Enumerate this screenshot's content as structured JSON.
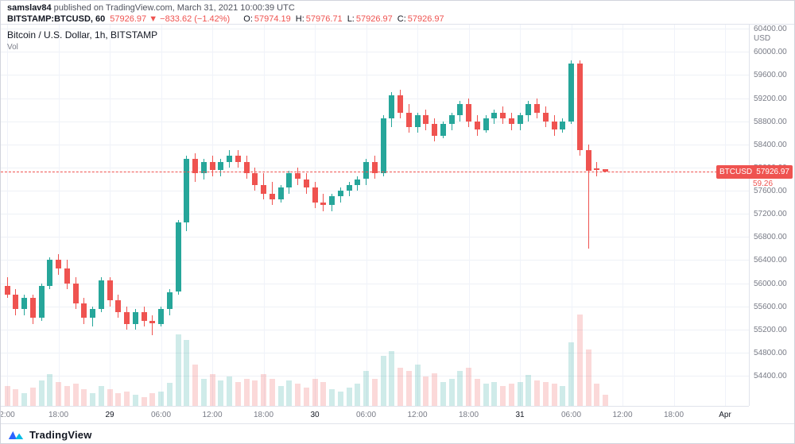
{
  "header": {
    "author": "samslav84",
    "published_text": "published on TradingView.com, March 31, 2021 10:00:39 UTC",
    "symbol": "BITSTAMP:BTCUSD, 60",
    "last_price": "57926.97",
    "change": "▼ −833.62 (−1.42%)",
    "ohlc": {
      "o_label": "O:",
      "o_value": "57974.19",
      "h_label": "H:",
      "h_value": "57976.71",
      "l_label": "L:",
      "l_value": "57926.97",
      "c_label": "C:",
      "c_value": "57926.97"
    }
  },
  "chart": {
    "legend_title": "Bitcoin / U.S. Dollar, 1h, BITSTAMP",
    "volume_label": "Vol",
    "axis_unit": "USD",
    "price_badge": {
      "symbol": "BTCUSD",
      "price": "57926.97",
      "sub_value": "59.26"
    },
    "colors": {
      "up": "#26a69a",
      "down": "#ef5350",
      "price_line": "#ef5350",
      "grid": "#eef1f6",
      "axis_text": "#787b86"
    }
  },
  "chart_data": {
    "type": "candlestick",
    "title": "Bitcoin / U.S. Dollar, 1h, BITSTAMP",
    "ylim": [
      53880,
      60470
    ],
    "y_grid_step": 400,
    "price_tick_labels": [
      "60400.00",
      "60000.00",
      "59600.00",
      "59200.00",
      "58800.00",
      "58400.00",
      "58000.00",
      "57600.00",
      "57200.00",
      "56800.00",
      "56400.00",
      "56000.00",
      "55600.00",
      "55200.00",
      "54800.00",
      "54400.00"
    ],
    "time_tick_labels": [
      {
        "label": "2:00",
        "ci": 0,
        "major": false
      },
      {
        "label": "18:00",
        "ci": 6,
        "major": false
      },
      {
        "label": "29",
        "ci": 12,
        "major": true
      },
      {
        "label": "06:00",
        "ci": 18,
        "major": false
      },
      {
        "label": "12:00",
        "ci": 24,
        "major": false
      },
      {
        "label": "18:00",
        "ci": 30,
        "major": false
      },
      {
        "label": "30",
        "ci": 36,
        "major": true
      },
      {
        "label": "06:00",
        "ci": 42,
        "major": false
      },
      {
        "label": "12:00",
        "ci": 48,
        "major": false
      },
      {
        "label": "18:00",
        "ci": 54,
        "major": false
      },
      {
        "label": "31",
        "ci": 60,
        "major": true
      },
      {
        "label": "06:00",
        "ci": 66,
        "major": false
      },
      {
        "label": "12:00",
        "ci": 72,
        "major": false
      },
      {
        "label": "18:00",
        "ci": 78,
        "major": false
      },
      {
        "label": "Apr",
        "ci": 84,
        "major": true
      }
    ],
    "last_price": 57926.97,
    "last_candle_ohlc": {
      "o": 57974.19,
      "h": 57976.71,
      "l": 57926.97,
      "c": 57926.97
    },
    "candles": [
      [
        55950,
        56100,
        55750,
        55800
      ],
      [
        55800,
        55900,
        55450,
        55550
      ],
      [
        55550,
        55800,
        55450,
        55750
      ],
      [
        55750,
        55800,
        55300,
        55400
      ],
      [
        55400,
        56000,
        55350,
        55950
      ],
      [
        55950,
        56450,
        55900,
        56400
      ],
      [
        56400,
        56500,
        56150,
        56250
      ],
      [
        56250,
        56400,
        55900,
        56000
      ],
      [
        56000,
        56100,
        55550,
        55650
      ],
      [
        55650,
        55750,
        55300,
        55400
      ],
      [
        55400,
        55600,
        55250,
        55550
      ],
      [
        55550,
        56100,
        55500,
        56050
      ],
      [
        56050,
        56100,
        55600,
        55700
      ],
      [
        55700,
        55800,
        55400,
        55500
      ],
      [
        55500,
        55600,
        55200,
        55300
      ],
      [
        55300,
        55550,
        55200,
        55500
      ],
      [
        55500,
        55600,
        55250,
        55350
      ],
      [
        55350,
        55450,
        55100,
        55300
      ],
      [
        55300,
        55600,
        55250,
        55550
      ],
      [
        55550,
        55900,
        55450,
        55850
      ],
      [
        55850,
        57100,
        55800,
        57050
      ],
      [
        57050,
        58200,
        56900,
        58150
      ],
      [
        58150,
        58250,
        57750,
        57900
      ],
      [
        57900,
        58150,
        57800,
        58100
      ],
      [
        58100,
        58200,
        57850,
        57950
      ],
      [
        57950,
        58150,
        57850,
        58100
      ],
      [
        58100,
        58300,
        58000,
        58200
      ],
      [
        58200,
        58300,
        58000,
        58100
      ],
      [
        58100,
        58200,
        57800,
        57900
      ],
      [
        57900,
        58000,
        57600,
        57700
      ],
      [
        57700,
        57900,
        57450,
        57550
      ],
      [
        57550,
        57750,
        57350,
        57450
      ],
      [
        57450,
        57700,
        57400,
        57650
      ],
      [
        57650,
        57950,
        57550,
        57900
      ],
      [
        57900,
        58000,
        57700,
        57800
      ],
      [
        57800,
        57900,
        57550,
        57650
      ],
      [
        57650,
        57750,
        57300,
        57400
      ],
      [
        57400,
        57550,
        57250,
        57350
      ],
      [
        57350,
        57550,
        57250,
        57500
      ],
      [
        57500,
        57650,
        57400,
        57600
      ],
      [
        57600,
        57750,
        57500,
        57700
      ],
      [
        57700,
        57850,
        57600,
        57800
      ],
      [
        57800,
        58150,
        57700,
        58100
      ],
      [
        58100,
        58200,
        57800,
        57900
      ],
      [
        57900,
        58900,
        57850,
        58850
      ],
      [
        58850,
        59300,
        58700,
        59250
      ],
      [
        59250,
        59350,
        58850,
        58950
      ],
      [
        58950,
        59100,
        58600,
        58700
      ],
      [
        58700,
        58950,
        58600,
        58900
      ],
      [
        58900,
        59000,
        58650,
        58750
      ],
      [
        58750,
        58850,
        58450,
        58550
      ],
      [
        58550,
        58800,
        58500,
        58750
      ],
      [
        58750,
        58950,
        58650,
        58900
      ],
      [
        58900,
        59150,
        58800,
        59100
      ],
      [
        59100,
        59200,
        58700,
        58800
      ],
      [
        58800,
        58900,
        58550,
        58650
      ],
      [
        58650,
        58900,
        58600,
        58850
      ],
      [
        58850,
        59000,
        58750,
        58950
      ],
      [
        58950,
        59050,
        58750,
        58850
      ],
      [
        58850,
        58950,
        58650,
        58750
      ],
      [
        58750,
        58950,
        58650,
        58900
      ],
      [
        58900,
        59150,
        58800,
        59100
      ],
      [
        59100,
        59200,
        58850,
        58950
      ],
      [
        58950,
        59050,
        58700,
        58800
      ],
      [
        58800,
        58900,
        58550,
        58650
      ],
      [
        58650,
        58850,
        58600,
        58800
      ],
      [
        58800,
        59850,
        58750,
        59800
      ],
      [
        59800,
        59850,
        58200,
        58300
      ],
      [
        58300,
        58400,
        56600,
        57950
      ],
      [
        57990,
        58100,
        57850,
        57950
      ],
      [
        57974.19,
        57976.71,
        57926.97,
        57926.97
      ]
    ],
    "volume": [
      22,
      18,
      14,
      20,
      28,
      35,
      26,
      22,
      24,
      18,
      14,
      22,
      18,
      14,
      16,
      12,
      10,
      14,
      16,
      25,
      78,
      72,
      45,
      30,
      35,
      28,
      32,
      26,
      30,
      28,
      35,
      30,
      22,
      28,
      24,
      20,
      30,
      26,
      18,
      16,
      20,
      24,
      38,
      30,
      55,
      60,
      42,
      38,
      45,
      32,
      36,
      26,
      30,
      38,
      42,
      30,
      24,
      26,
      22,
      24,
      26,
      34,
      28,
      26,
      24,
      22,
      70,
      100,
      62,
      24,
      12
    ]
  },
  "footer": {
    "brand": "TradingView"
  }
}
